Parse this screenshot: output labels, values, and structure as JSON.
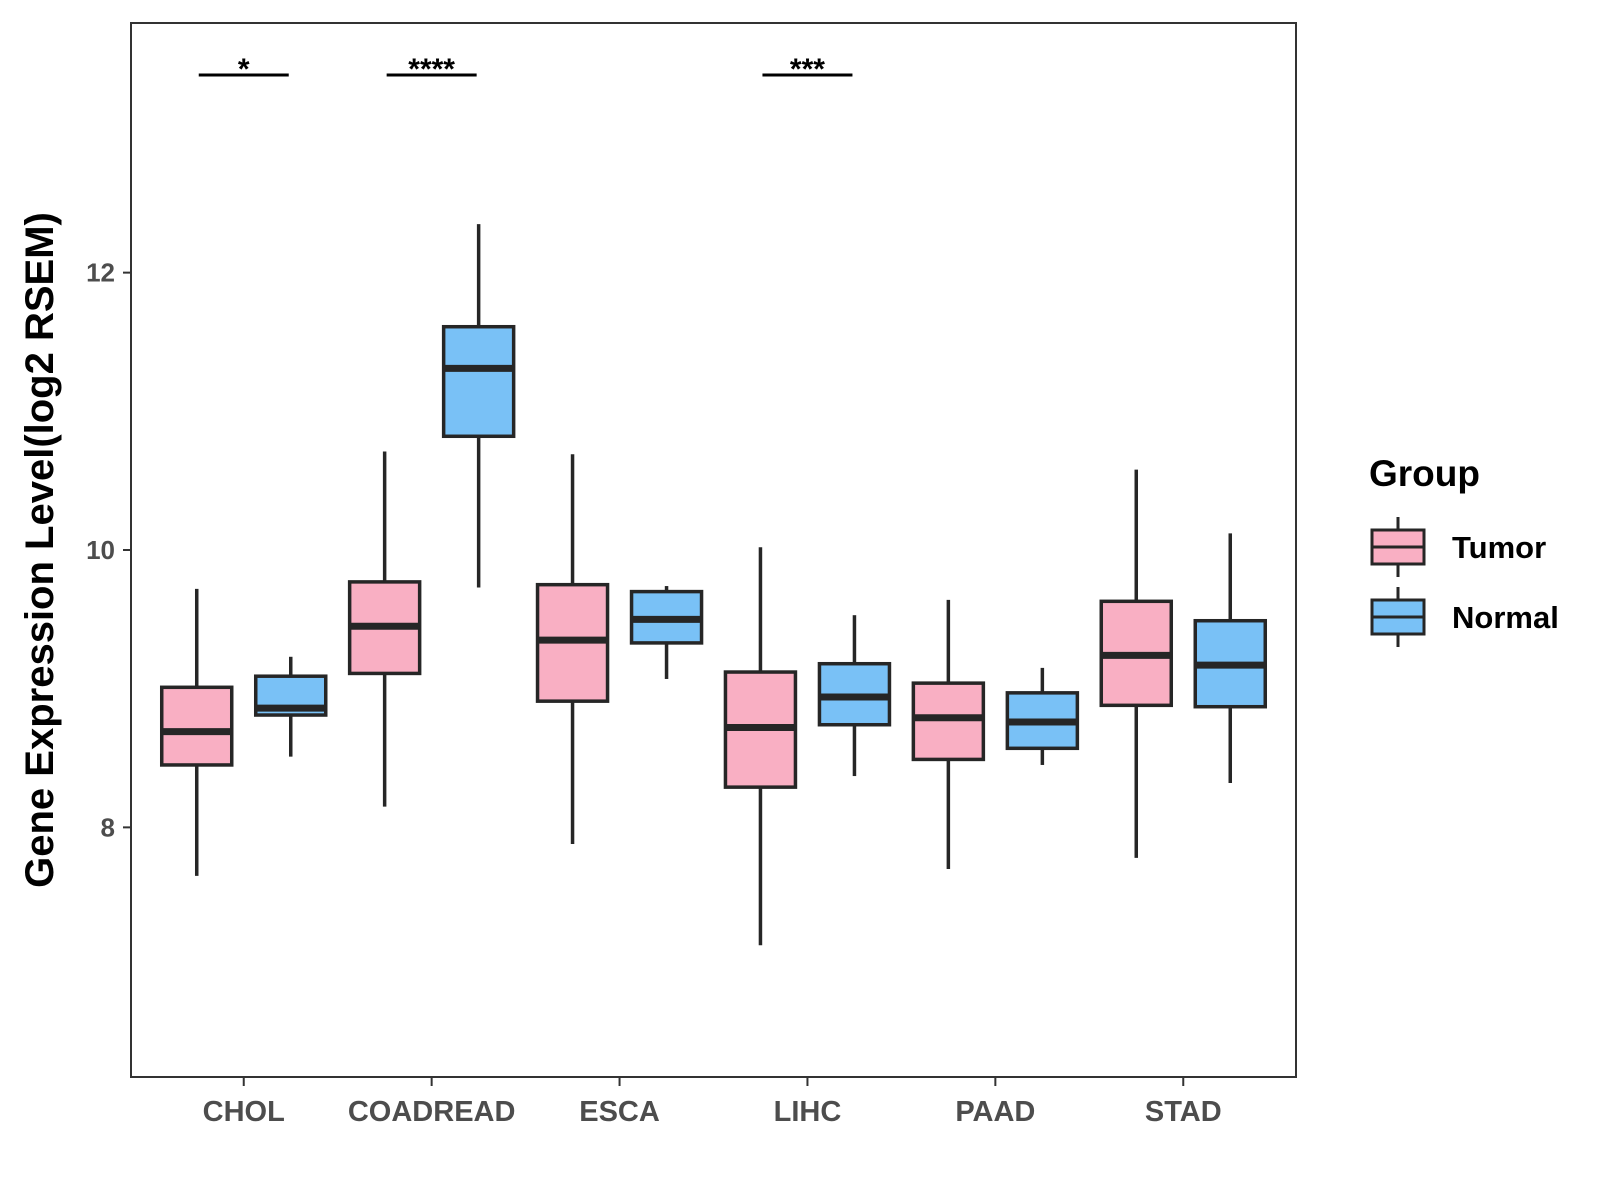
{
  "chart_data": {
    "type": "boxplot",
    "title": "",
    "xlabel": "",
    "ylabel": "Gene Expression Level(log2 RSEM)",
    "ylim": [
      6.2,
      13.8
    ],
    "yticks": [
      8,
      10,
      12
    ],
    "categories": [
      "CHOL",
      "COADREAD",
      "ESCA",
      "LIHC",
      "PAAD",
      "STAD"
    ],
    "legend": {
      "title": "Group",
      "position": "right",
      "items": [
        {
          "name": "Tumor",
          "color": "#F9AFC3"
        },
        {
          "name": "Normal",
          "color": "#79C1F6"
        }
      ]
    },
    "series": [
      {
        "name": "Tumor",
        "color": "#F9AFC3",
        "boxes": [
          {
            "category": "CHOL",
            "whisker_low": 7.65,
            "q1": 8.45,
            "median": 8.69,
            "q3": 9.01,
            "whisker_high": 9.72
          },
          {
            "category": "COADREAD",
            "whisker_low": 8.15,
            "q1": 9.11,
            "median": 9.45,
            "q3": 9.77,
            "whisker_high": 10.71
          },
          {
            "category": "ESCA",
            "whisker_low": 7.88,
            "q1": 8.91,
            "median": 9.35,
            "q3": 9.75,
            "whisker_high": 10.69
          },
          {
            "category": "LIHC",
            "whisker_low": 7.15,
            "q1": 8.29,
            "median": 8.72,
            "q3": 9.12,
            "whisker_high": 10.02
          },
          {
            "category": "PAAD",
            "whisker_low": 7.7,
            "q1": 8.49,
            "median": 8.79,
            "q3": 9.04,
            "whisker_high": 9.64
          },
          {
            "category": "STAD",
            "whisker_low": 7.78,
            "q1": 8.88,
            "median": 9.24,
            "q3": 9.63,
            "whisker_high": 10.58
          }
        ]
      },
      {
        "name": "Normal",
        "color": "#79C1F6",
        "boxes": [
          {
            "category": "CHOL",
            "whisker_low": 8.51,
            "q1": 8.81,
            "median": 8.86,
            "q3": 9.09,
            "whisker_high": 9.23
          },
          {
            "category": "COADREAD",
            "whisker_low": 9.73,
            "q1": 10.82,
            "median": 11.31,
            "q3": 11.61,
            "whisker_high": 12.35
          },
          {
            "category": "ESCA",
            "whisker_low": 9.07,
            "q1": 9.33,
            "median": 9.5,
            "q3": 9.7,
            "whisker_high": 9.74
          },
          {
            "category": "LIHC",
            "whisker_low": 8.37,
            "q1": 8.74,
            "median": 8.94,
            "q3": 9.18,
            "whisker_high": 9.53
          },
          {
            "category": "PAAD",
            "whisker_low": 8.45,
            "q1": 8.57,
            "median": 8.76,
            "q3": 8.97,
            "whisker_high": 9.15
          },
          {
            "category": "STAD",
            "whisker_low": 8.32,
            "q1": 8.87,
            "median": 9.17,
            "q3": 9.49,
            "whisker_high": 10.12
          }
        ]
      }
    ],
    "significance": [
      {
        "category": "CHOL",
        "label": "*"
      },
      {
        "category": "COADREAD",
        "label": "****"
      },
      {
        "category": "LIHC",
        "label": "***"
      }
    ]
  }
}
